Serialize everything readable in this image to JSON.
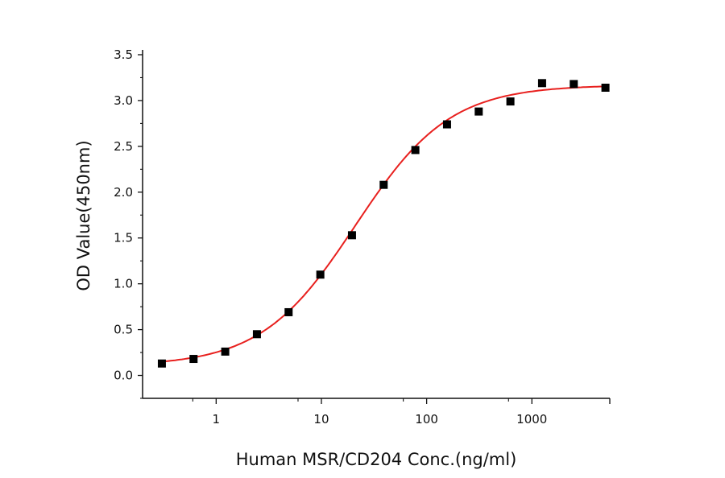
{
  "chart_data": {
    "type": "scatter",
    "title": "",
    "xlabel": "Human MSR/CD204 Conc.(ng/ml)",
    "ylabel": "OD Value(450nm)",
    "xscale": "log",
    "xlim": [
      0.2,
      5500
    ],
    "ylim": [
      -0.25,
      3.5
    ],
    "xticks": [
      1,
      10,
      100,
      1000
    ],
    "xtick_labels": [
      "1",
      "10",
      "100",
      "1000"
    ],
    "yticks": [
      0.0,
      0.5,
      1.0,
      1.5,
      2.0,
      2.5,
      3.0,
      3.5
    ],
    "ytick_labels": [
      "0.0",
      "0.5",
      "1.0",
      "1.5",
      "2.0",
      "2.5",
      "3.0",
      "3.5"
    ],
    "grid": false,
    "legend": "none",
    "series": [
      {
        "marker": "square",
        "color": "#000000",
        "x": [
          0.305,
          0.61,
          1.22,
          2.44,
          4.88,
          9.77,
          19.53,
          39.06,
          78.13,
          156.25,
          312.5,
          625,
          1250,
          2500,
          5000
        ],
        "y": [
          0.13,
          0.18,
          0.26,
          0.45,
          0.69,
          1.1,
          1.53,
          2.08,
          2.46,
          2.74,
          2.88,
          2.99,
          3.19,
          3.18,
          3.14
        ]
      }
    ],
    "fit": {
      "model": "4PL",
      "color": "#e8201e",
      "bottom": 0.1,
      "top": 3.17,
      "ec50": 21,
      "hill": 0.97
    }
  }
}
